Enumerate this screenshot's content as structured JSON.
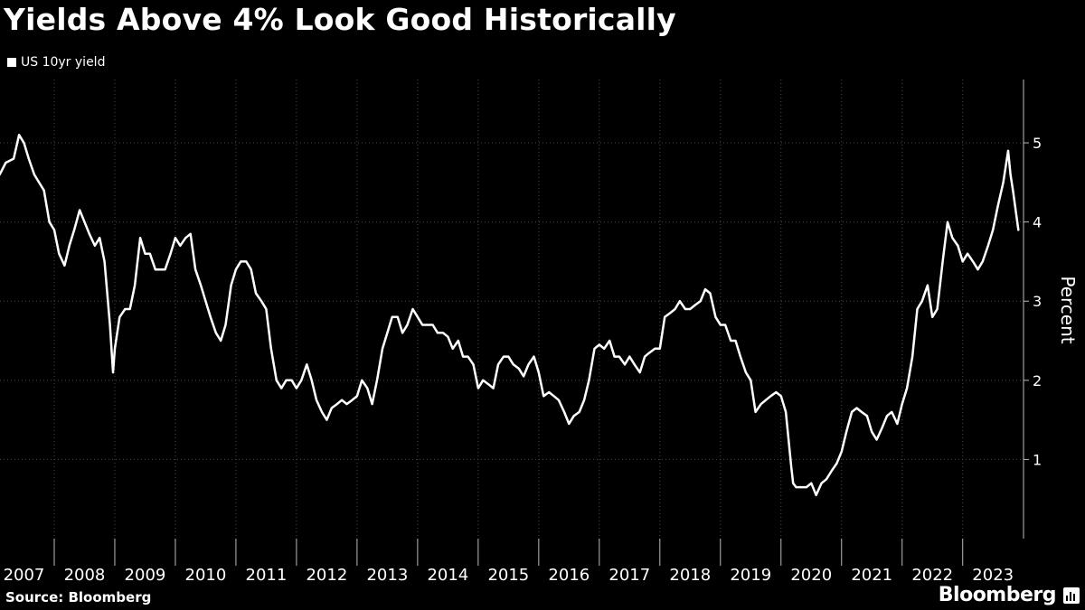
{
  "title": "Yields Above 4% Look Good Historically",
  "legend": [
    {
      "label": "US 10yr yield",
      "color": "#ffffff"
    }
  ],
  "source": "Source: Bloomberg",
  "brand": "Bloomberg",
  "brand_icon": "bloomberg-terminal-icon",
  "chart_data": {
    "type": "line",
    "title": "Yields Above 4% Look Good Historically",
    "xlabel": "",
    "ylabel": "Percent",
    "y_ticks": [
      1,
      2,
      3,
      4,
      5
    ],
    "ylim": [
      0.0,
      5.8
    ],
    "x_tick_labels": [
      "2007",
      "2008",
      "2009",
      "2010",
      "2011",
      "2012",
      "2013",
      "2014",
      "2015",
      "2016",
      "2017",
      "2018",
      "2019",
      "2020",
      "2021",
      "2022",
      "2023"
    ],
    "xlim": [
      2007.0,
      2023.9
    ],
    "grid": true,
    "legend_position": "top-left",
    "series": [
      {
        "name": "US 10yr yield",
        "color": "#ffffff",
        "x": [
          2007.0,
          2007.1,
          2007.2,
          2007.33,
          2007.42,
          2007.5,
          2007.58,
          2007.67,
          2007.75,
          2007.83,
          2007.92,
          2008.0,
          2008.08,
          2008.17,
          2008.25,
          2008.33,
          2008.42,
          2008.5,
          2008.58,
          2008.67,
          2008.75,
          2008.83,
          2008.92,
          2008.97,
          2009.0,
          2009.08,
          2009.17,
          2009.25,
          2009.33,
          2009.42,
          2009.5,
          2009.58,
          2009.67,
          2009.75,
          2009.83,
          2009.92,
          2010.0,
          2010.08,
          2010.17,
          2010.25,
          2010.33,
          2010.42,
          2010.5,
          2010.58,
          2010.67,
          2010.75,
          2010.83,
          2010.92,
          2011.0,
          2011.08,
          2011.17,
          2011.25,
          2011.33,
          2011.42,
          2011.5,
          2011.58,
          2011.67,
          2011.75,
          2011.83,
          2011.92,
          2012.0,
          2012.08,
          2012.17,
          2012.25,
          2012.33,
          2012.42,
          2012.5,
          2012.58,
          2012.67,
          2012.75,
          2012.83,
          2012.92,
          2013.0,
          2013.08,
          2013.17,
          2013.25,
          2013.33,
          2013.42,
          2013.5,
          2013.58,
          2013.67,
          2013.75,
          2013.83,
          2013.92,
          2014.0,
          2014.08,
          2014.17,
          2014.25,
          2014.33,
          2014.42,
          2014.5,
          2014.58,
          2014.67,
          2014.75,
          2014.83,
          2014.92,
          2015.0,
          2015.08,
          2015.17,
          2015.25,
          2015.33,
          2015.42,
          2015.5,
          2015.58,
          2015.67,
          2015.75,
          2015.83,
          2015.92,
          2016.0,
          2016.08,
          2016.17,
          2016.25,
          2016.33,
          2016.42,
          2016.5,
          2016.58,
          2016.67,
          2016.75,
          2016.83,
          2016.92,
          2017.0,
          2017.08,
          2017.17,
          2017.25,
          2017.33,
          2017.42,
          2017.5,
          2017.58,
          2017.67,
          2017.75,
          2017.83,
          2017.92,
          2018.0,
          2018.08,
          2018.17,
          2018.25,
          2018.33,
          2018.42,
          2018.5,
          2018.58,
          2018.67,
          2018.75,
          2018.83,
          2018.92,
          2019.0,
          2019.08,
          2019.17,
          2019.25,
          2019.33,
          2019.42,
          2019.5,
          2019.58,
          2019.67,
          2019.75,
          2019.83,
          2019.92,
          2020.0,
          2020.08,
          2020.17,
          2020.2,
          2020.25,
          2020.33,
          2020.42,
          2020.5,
          2020.58,
          2020.67,
          2020.75,
          2020.83,
          2020.92,
          2021.0,
          2021.08,
          2021.17,
          2021.25,
          2021.33,
          2021.42,
          2021.5,
          2021.58,
          2021.67,
          2021.75,
          2021.83,
          2021.92,
          2022.0,
          2022.08,
          2022.17,
          2022.25,
          2022.33,
          2022.42,
          2022.5,
          2022.58,
          2022.67,
          2022.75,
          2022.83,
          2022.92,
          2023.0,
          2023.08,
          2023.17,
          2023.25,
          2023.33,
          2023.42,
          2023.5,
          2023.58,
          2023.67,
          2023.75,
          2023.79,
          2023.83,
          2023.92
        ],
        "y": [
          4.7,
          4.6,
          4.75,
          4.8,
          5.1,
          5.0,
          4.8,
          4.6,
          4.5,
          4.4,
          4.0,
          3.9,
          3.6,
          3.45,
          3.7,
          3.9,
          4.15,
          4.0,
          3.85,
          3.7,
          3.8,
          3.5,
          2.7,
          2.1,
          2.4,
          2.8,
          2.9,
          2.9,
          3.2,
          3.8,
          3.6,
          3.6,
          3.4,
          3.4,
          3.4,
          3.6,
          3.8,
          3.7,
          3.8,
          3.85,
          3.4,
          3.2,
          3.0,
          2.8,
          2.6,
          2.5,
          2.7,
          3.2,
          3.4,
          3.5,
          3.5,
          3.4,
          3.1,
          3.0,
          2.9,
          2.4,
          2.0,
          1.9,
          2.0,
          2.0,
          1.9,
          2.0,
          2.2,
          2.0,
          1.75,
          1.6,
          1.5,
          1.65,
          1.7,
          1.75,
          1.7,
          1.75,
          1.8,
          2.0,
          1.9,
          1.7,
          2.0,
          2.4,
          2.6,
          2.8,
          2.8,
          2.6,
          2.7,
          2.9,
          2.8,
          2.7,
          2.7,
          2.7,
          2.6,
          2.6,
          2.55,
          2.4,
          2.5,
          2.3,
          2.3,
          2.2,
          1.9,
          2.0,
          1.95,
          1.9,
          2.2,
          2.3,
          2.3,
          2.2,
          2.15,
          2.05,
          2.2,
          2.3,
          2.1,
          1.8,
          1.85,
          1.8,
          1.75,
          1.6,
          1.45,
          1.55,
          1.6,
          1.75,
          2.0,
          2.4,
          2.45,
          2.4,
          2.5,
          2.3,
          2.3,
          2.2,
          2.3,
          2.2,
          2.1,
          2.3,
          2.35,
          2.4,
          2.4,
          2.8,
          2.85,
          2.9,
          3.0,
          2.9,
          2.9,
          2.95,
          3.0,
          3.15,
          3.1,
          2.8,
          2.7,
          2.7,
          2.5,
          2.5,
          2.3,
          2.1,
          2.0,
          1.6,
          1.7,
          1.75,
          1.8,
          1.85,
          1.8,
          1.6,
          0.9,
          0.7,
          0.65,
          0.65,
          0.65,
          0.7,
          0.55,
          0.7,
          0.75,
          0.85,
          0.95,
          1.1,
          1.35,
          1.6,
          1.65,
          1.6,
          1.55,
          1.35,
          1.25,
          1.4,
          1.55,
          1.6,
          1.45,
          1.7,
          1.9,
          2.3,
          2.9,
          3.0,
          3.2,
          2.8,
          2.9,
          3.5,
          4.0,
          3.8,
          3.7,
          3.5,
          3.6,
          3.5,
          3.4,
          3.5,
          3.7,
          3.9,
          4.2,
          4.5,
          4.9,
          4.6,
          4.4,
          3.9
        ]
      }
    ]
  }
}
